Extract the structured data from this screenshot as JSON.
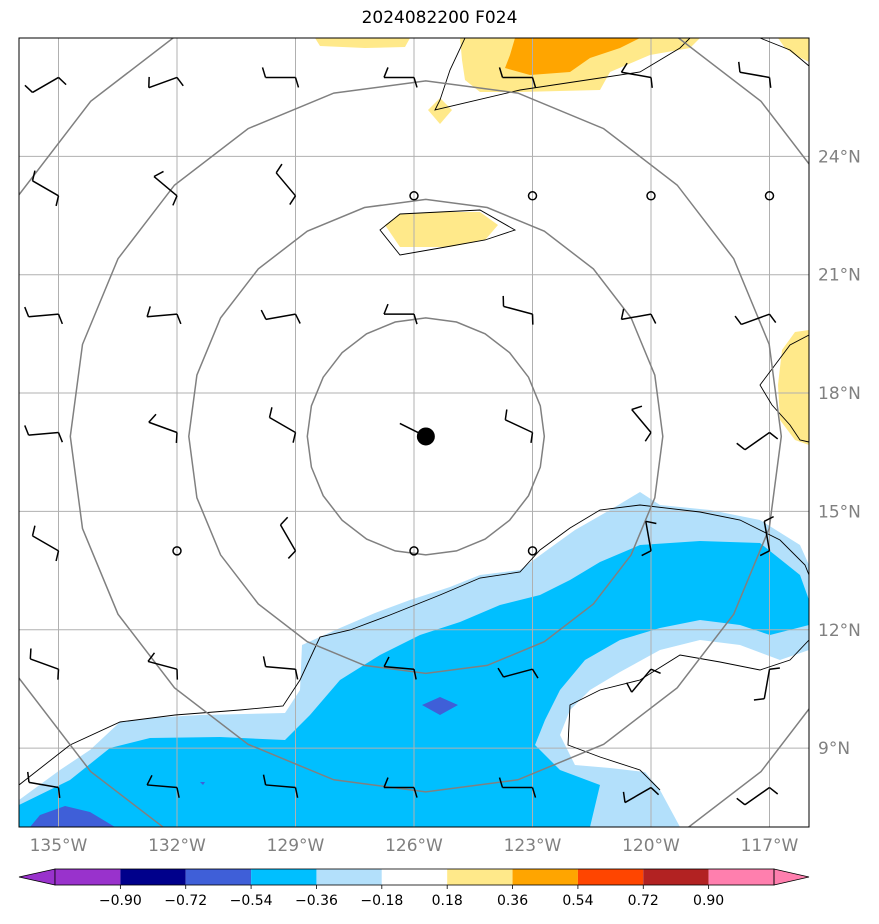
{
  "title": "2024082200 F024",
  "map": {
    "lon_range": [
      -136,
      -116
    ],
    "lat_range": [
      7,
      27
    ],
    "lon_ticks": [
      {
        "value": -135,
        "label": "135°W"
      },
      {
        "value": -132,
        "label": "132°W"
      },
      {
        "value": -129,
        "label": "129°W"
      },
      {
        "value": -126,
        "label": "126°W"
      },
      {
        "value": -123,
        "label": "123°W"
      },
      {
        "value": -120,
        "label": "120°W"
      },
      {
        "value": -117,
        "label": "117°W"
      }
    ],
    "lat_ticks": [
      {
        "value": 9,
        "label": "9°N"
      },
      {
        "value": 12,
        "label": "12°N"
      },
      {
        "value": 15,
        "label": "15°N"
      },
      {
        "value": 18,
        "label": "18°N"
      },
      {
        "value": 21,
        "label": "21°N"
      },
      {
        "value": 24,
        "label": "24°N"
      }
    ],
    "center": {
      "lon": -125.7,
      "lat": 16.9
    },
    "range_ring_radii_deg": [
      3,
      6,
      9,
      12
    ],
    "colors": {
      "neg_light": "#b3e0fb",
      "neg_mid": "#00bfff",
      "neg_dark": "#3f5fd8",
      "pos_light": "#ffe98a",
      "pos_mid": "#ffa500",
      "ring": "#808080",
      "grid": "#b0b0b0"
    },
    "barb_lats": [
      8,
      11,
      14,
      17,
      20,
      23,
      26
    ],
    "barb_lons": [
      -135,
      -132,
      -129,
      -126,
      -123,
      -120,
      -117
    ]
  },
  "colorbar": {
    "colors": [
      "#9932cc",
      "#00008b",
      "#3f5fd8",
      "#00bfff",
      "#b3e0fb",
      "#ffffff",
      "#ffe98a",
      "#ffa500",
      "#ff4500",
      "#b22222",
      "#ff7fae",
      "#ff7fae"
    ],
    "labels": [
      "−0.90",
      "−0.72",
      "−0.54",
      "−0.36",
      "−0.18",
      "0.18",
      "0.36",
      "0.54",
      "0.72",
      "0.90"
    ]
  }
}
